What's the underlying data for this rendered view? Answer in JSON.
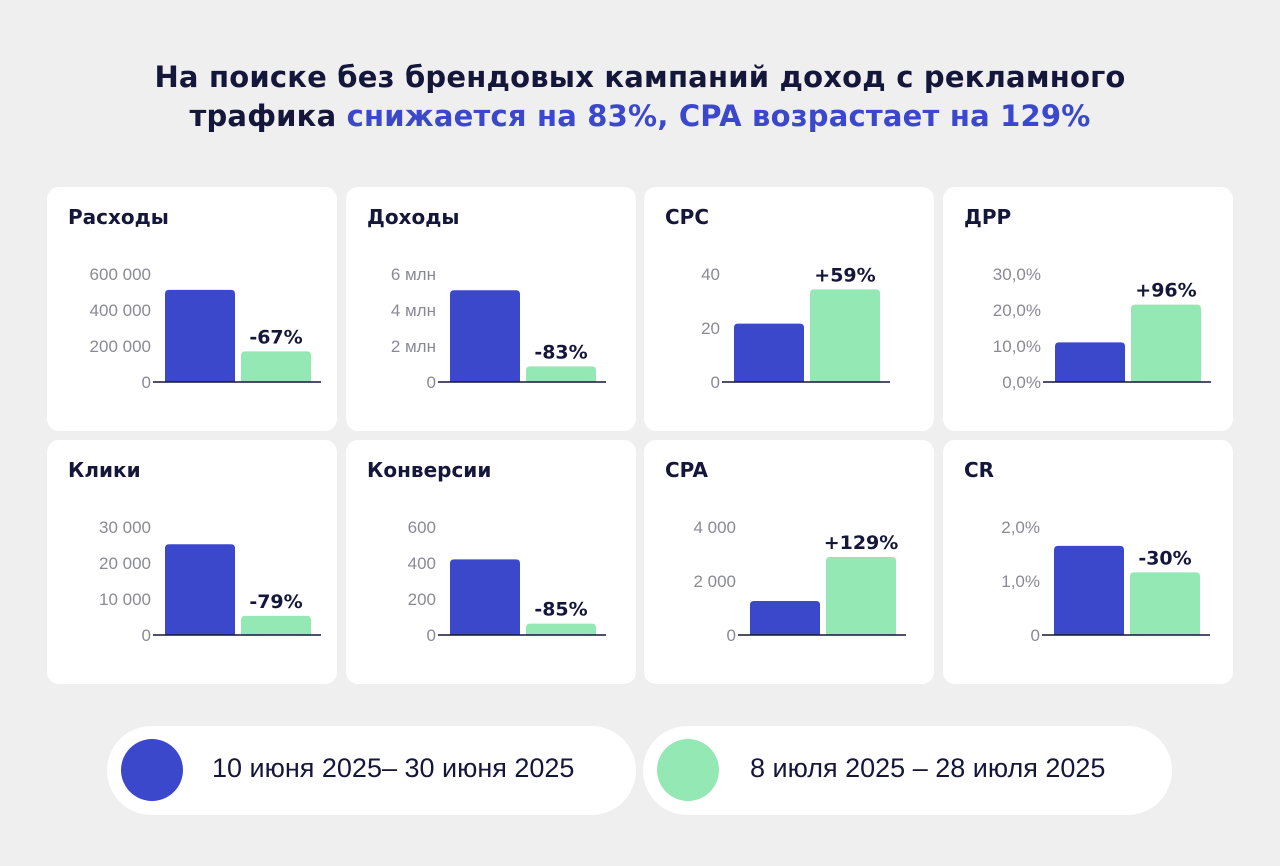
{
  "title": {
    "line1": "На поиске без брендовых кампаний доход с рекламного",
    "line2_plain": "трафика ",
    "line2_highlight": "снижается на 83%, CPA возрастает на 129%"
  },
  "colors": {
    "period1": "#3b48cc",
    "period2": "#94e8b4",
    "text": "#14163a",
    "axis_label": "#8a8a96",
    "background": "#efefef"
  },
  "legend": [
    {
      "label": "10 июня 2025– 30 июня 2025",
      "color": "#3b48cc"
    },
    {
      "label": "8 июля 2025 – 28 июля 2025",
      "color": "#94e8b4"
    }
  ],
  "chart_data": [
    {
      "type": "bar",
      "title": "Расходы",
      "categories": [
        "10 июня 2025– 30 июня 2025",
        "8 июля 2025 – 28 июля 2025"
      ],
      "values": [
        512000,
        170000
      ],
      "ylim": [
        0,
        600000
      ],
      "ticks": [
        0,
        200000,
        400000,
        600000
      ],
      "tick_labels": [
        "0",
        "200 000",
        "400 000",
        "600 000"
      ],
      "change_label": "-67%"
    },
    {
      "type": "bar",
      "title": "Доходы",
      "categories": [
        "10 июня 2025– 30 июня 2025",
        "8 июля 2025 – 28 июля 2025"
      ],
      "values": [
        5100000,
        870000
      ],
      "ylim": [
        0,
        6000000
      ],
      "ticks": [
        0,
        2000000,
        4000000,
        6000000
      ],
      "tick_labels": [
        "0",
        "2 млн",
        "4 млн",
        "6 млн"
      ],
      "change_label": "-83%"
    },
    {
      "type": "bar",
      "title": "CPC",
      "categories": [
        "10 июня 2025– 30 июня 2025",
        "8 июля 2025 – 28 июля 2025"
      ],
      "values": [
        21.6,
        34.3
      ],
      "ylim": [
        0,
        40
      ],
      "ticks": [
        0,
        20,
        40
      ],
      "tick_labels": [
        "0",
        "20",
        "40"
      ],
      "change_label": "+59%"
    },
    {
      "type": "bar",
      "title": "ДРР",
      "categories": [
        "10 июня 2025– 30 июня 2025",
        "8 июля 2025 – 28 июля 2025"
      ],
      "values": [
        11.0,
        21.5
      ],
      "ylim": [
        0,
        30
      ],
      "ticks": [
        0,
        10,
        20,
        30
      ],
      "tick_labels": [
        "0,0%",
        "10,0%",
        "20,0%",
        "30,0%"
      ],
      "change_label": "+96%"
    },
    {
      "type": "bar",
      "title": "Клики",
      "categories": [
        "10 июня 2025– 30 июня 2025",
        "8 июля 2025 – 28 июля 2025"
      ],
      "values": [
        25200,
        5300
      ],
      "ylim": [
        0,
        30000
      ],
      "ticks": [
        0,
        10000,
        20000,
        30000
      ],
      "tick_labels": [
        "0",
        "10 000",
        "20 000",
        "30 000"
      ],
      "change_label": "-79%"
    },
    {
      "type": "bar",
      "title": "Конверсии",
      "categories": [
        "10 июня 2025– 30 июня 2025",
        "8 июля 2025 – 28 июля 2025"
      ],
      "values": [
        420,
        63
      ],
      "ylim": [
        0,
        600
      ],
      "ticks": [
        0,
        200,
        400,
        600
      ],
      "tick_labels": [
        "0",
        "200",
        "400",
        "600"
      ],
      "change_label": "-85%"
    },
    {
      "type": "bar",
      "title": "CPA",
      "categories": [
        "10 июня 2025– 30 июня 2025",
        "8 июля 2025 – 28 июля 2025"
      ],
      "values": [
        1260,
        2890
      ],
      "ylim": [
        0,
        4000
      ],
      "ticks": [
        0,
        2000,
        4000
      ],
      "tick_labels": [
        "0",
        "2 000",
        "4 000"
      ],
      "change_label": "+129%"
    },
    {
      "type": "bar",
      "title": "CR",
      "categories": [
        "10 июня 2025– 30 июня 2025",
        "8 июля 2025 – 28 июля 2025"
      ],
      "values": [
        1.65,
        1.16
      ],
      "ylim": [
        0,
        2
      ],
      "ticks": [
        0,
        1,
        2
      ],
      "tick_labels": [
        "0",
        "1,0%",
        "2,0%"
      ],
      "change_label": "-30%"
    }
  ]
}
